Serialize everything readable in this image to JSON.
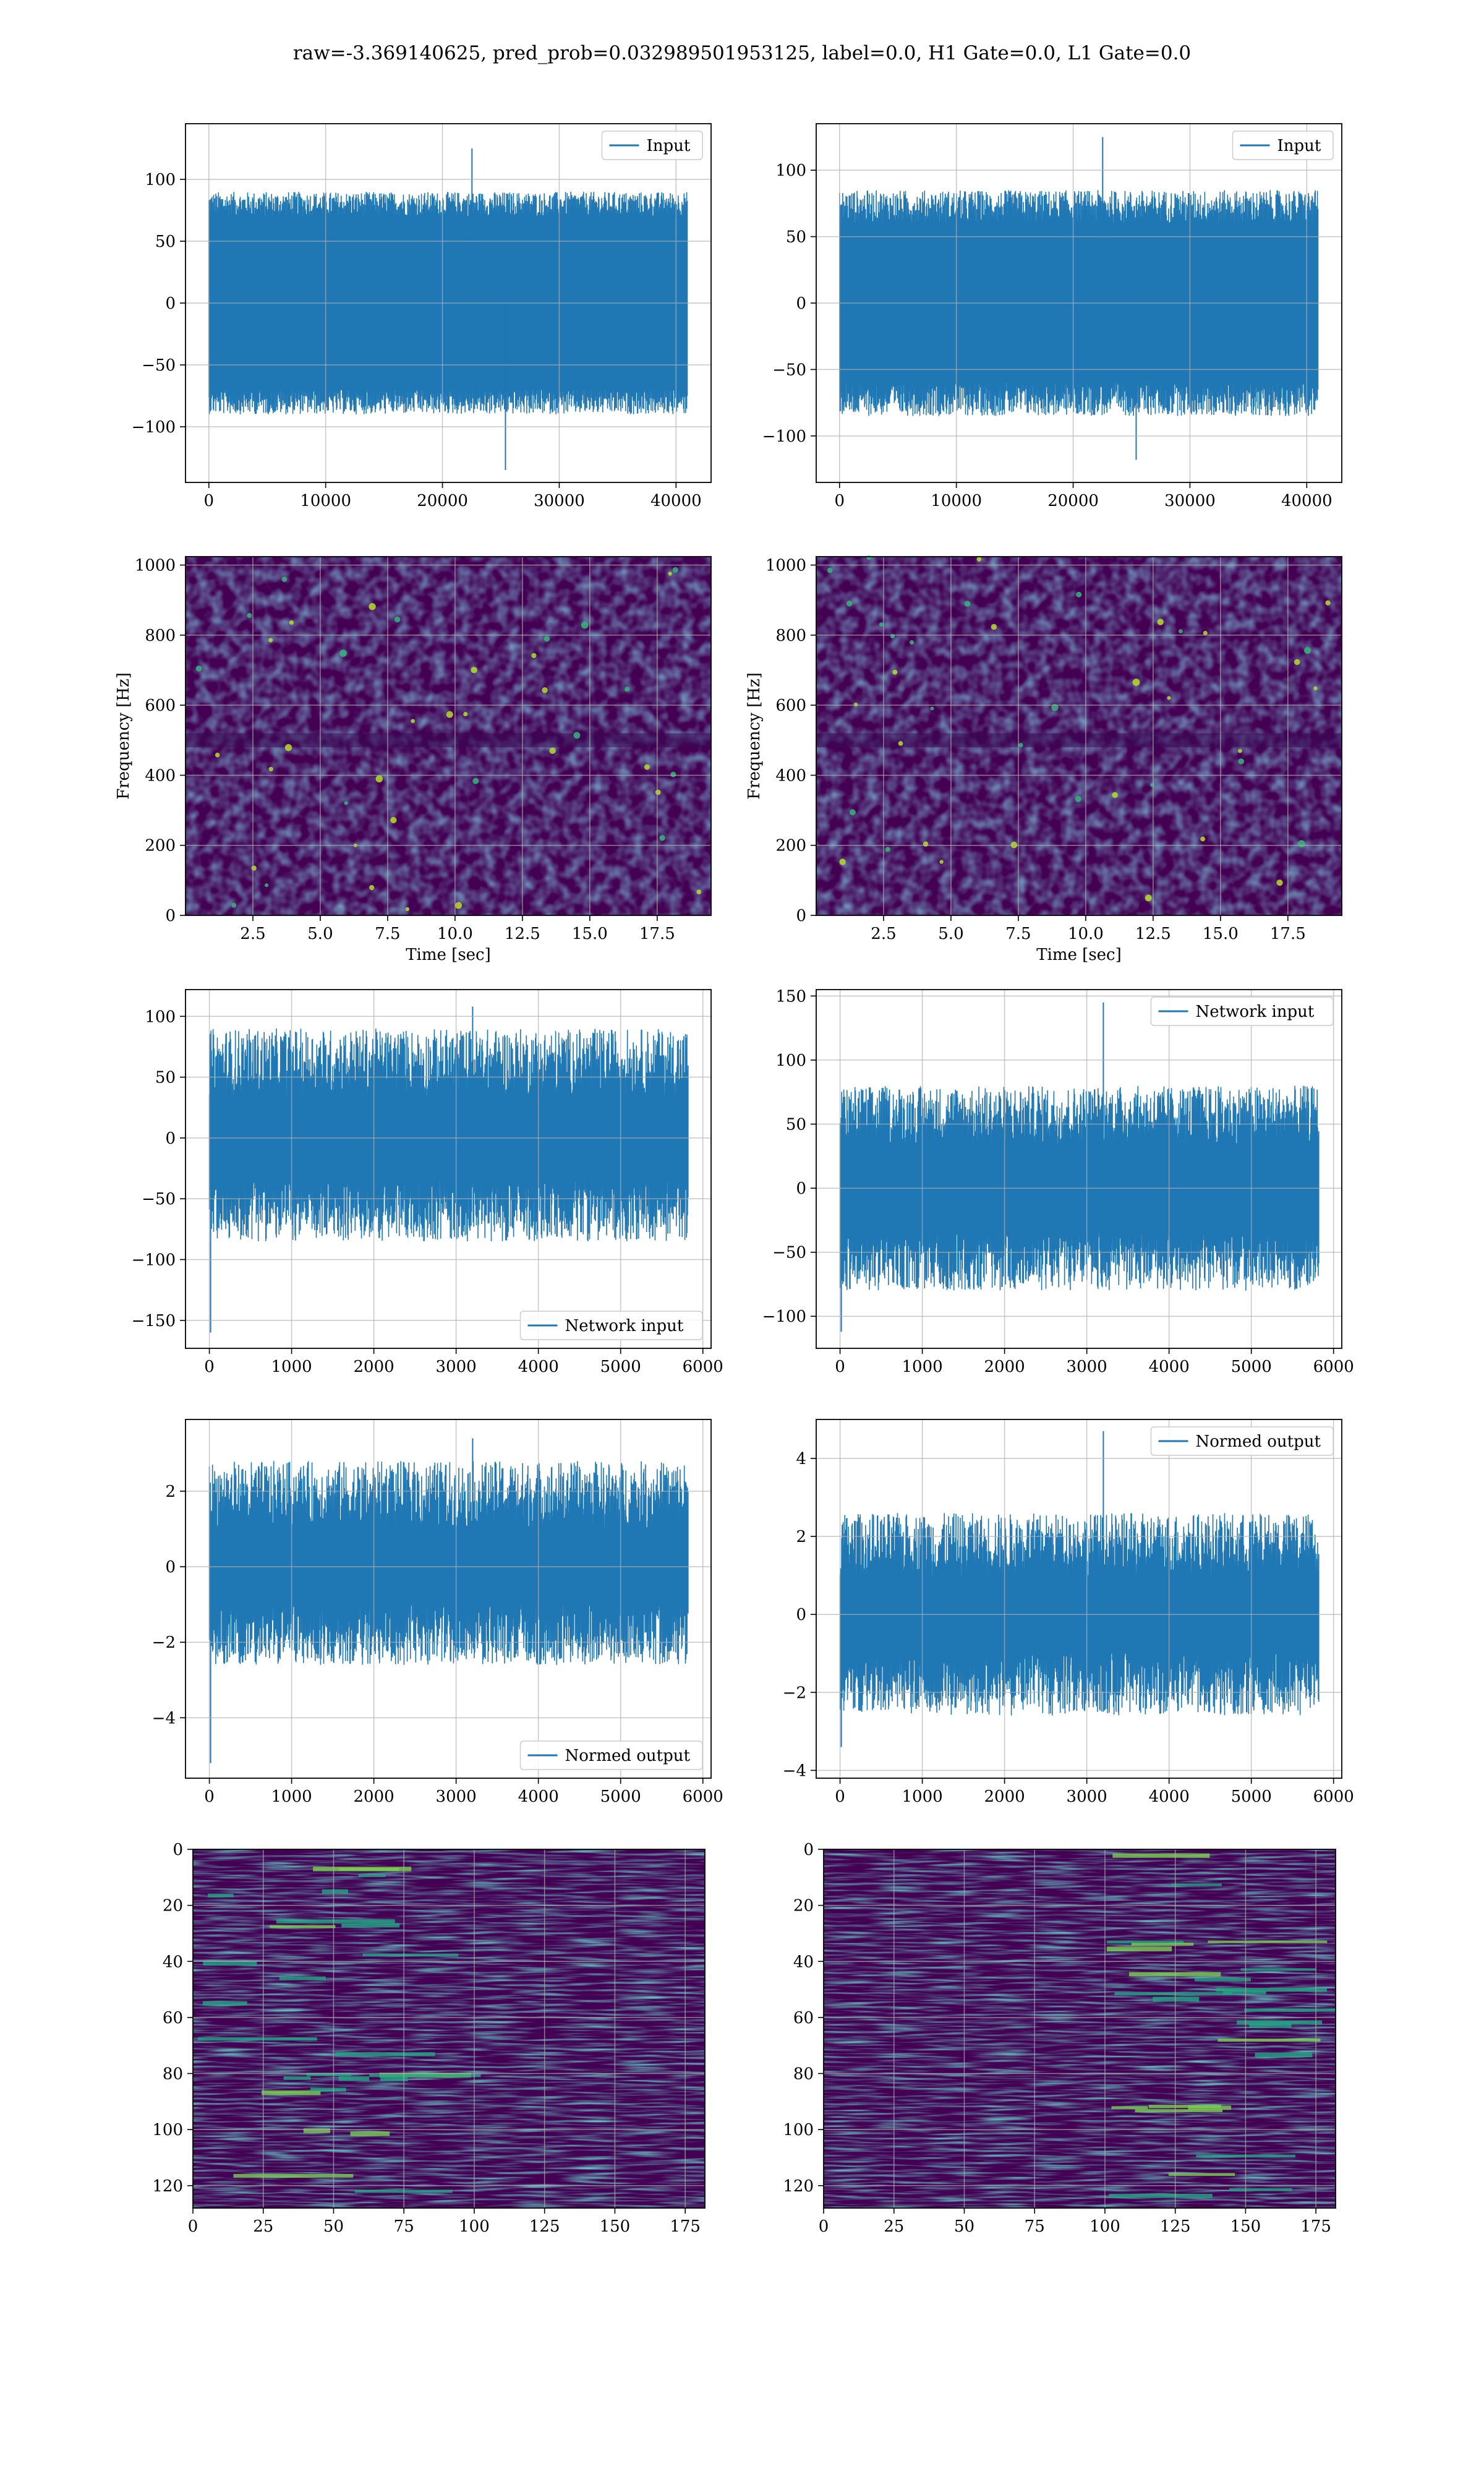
{
  "suptitle": "raw=-3.369140625, pred_prob=0.032989501953125, label=0.0, H1 Gate=0.0, L1 Gate=0.0",
  "colors": {
    "line": "#1f77b4",
    "grid": "#b0b0b0",
    "frame": "#000000",
    "image_base": "#440154"
  },
  "chart_data": [
    {
      "panel": "row1-left",
      "type": "line",
      "xlim": [
        -2000,
        43000
      ],
      "ylim": [
        -145,
        145
      ],
      "xticks": [
        0,
        10000,
        20000,
        30000,
        40000
      ],
      "xtick_labels": [
        "0",
        "10000",
        "20000",
        "30000",
        "40000"
      ],
      "yticks": [
        -100,
        -50,
        0,
        50,
        100
      ],
      "ytick_labels": [
        "−100",
        "−50",
        "0",
        "50",
        "100"
      ],
      "series": [
        {
          "name": "Input",
          "x_range": [
            0,
            40960
          ],
          "envelope": [
            -90,
            90
          ],
          "core": [
            -70,
            70
          ],
          "peak_max": 125,
          "peak_min": -135
        }
      ],
      "legend": "upper right",
      "grid": true,
      "xlabel": "",
      "ylabel": ""
    },
    {
      "panel": "row1-right",
      "type": "line",
      "xlim": [
        -2000,
        43000
      ],
      "ylim": [
        -135,
        135
      ],
      "xticks": [
        0,
        10000,
        20000,
        30000,
        40000
      ],
      "xtick_labels": [
        "0",
        "10000",
        "20000",
        "30000",
        "40000"
      ],
      "yticks": [
        -100,
        -50,
        0,
        50,
        100
      ],
      "ytick_labels": [
        "−100",
        "−50",
        "0",
        "50",
        "100"
      ],
      "series": [
        {
          "name": "Input",
          "x_range": [
            0,
            40960
          ],
          "envelope": [
            -85,
            85
          ],
          "core": [
            -60,
            60
          ],
          "peak_max": 125,
          "peak_min": -118
        }
      ],
      "legend": "upper right",
      "grid": true,
      "xlabel": "",
      "ylabel": ""
    },
    {
      "panel": "row2-left",
      "type": "heatmap",
      "xlim": [
        0,
        19.5
      ],
      "ylim": [
        0,
        1024
      ],
      "xticks": [
        2.5,
        5,
        7.5,
        10,
        12.5,
        15,
        17.5
      ],
      "xtick_labels": [
        "2.5",
        "5.0",
        "7.5",
        "10.0",
        "12.5",
        "15.0",
        "17.5"
      ],
      "yticks": [
        0,
        200,
        400,
        600,
        800,
        1000
      ],
      "ytick_labels": [
        "0",
        "200",
        "400",
        "600",
        "800",
        "1000"
      ],
      "xlabel": "Time [sec]",
      "ylabel": "Frequency [Hz]",
      "grid": true,
      "colormap": "viridis"
    },
    {
      "panel": "row2-right",
      "type": "heatmap",
      "xlim": [
        0,
        19.5
      ],
      "ylim": [
        0,
        1024
      ],
      "xticks": [
        2.5,
        5,
        7.5,
        10,
        12.5,
        15,
        17.5
      ],
      "xtick_labels": [
        "2.5",
        "5.0",
        "7.5",
        "10.0",
        "12.5",
        "15.0",
        "17.5"
      ],
      "yticks": [
        0,
        200,
        400,
        600,
        800,
        1000
      ],
      "ytick_labels": [
        "0",
        "200",
        "400",
        "600",
        "800",
        "1000"
      ],
      "xlabel": "Time [sec]",
      "ylabel": "Frequency [Hz]",
      "grid": true,
      "colormap": "viridis"
    },
    {
      "panel": "row3-left",
      "type": "line",
      "xlim": [
        -290,
        6100
      ],
      "ylim": [
        -173,
        122
      ],
      "xticks": [
        0,
        1000,
        2000,
        3000,
        4000,
        5000,
        6000
      ],
      "xtick_labels": [
        "0",
        "1000",
        "2000",
        "3000",
        "4000",
        "5000",
        "6000"
      ],
      "yticks": [
        -150,
        -100,
        -50,
        0,
        50,
        100
      ],
      "ytick_labels": [
        "−150",
        "−100",
        "−50",
        "0",
        "50",
        "100"
      ],
      "series": [
        {
          "name": "Network input",
          "x_range": [
            0,
            5820
          ],
          "envelope": [
            -85,
            90
          ],
          "core": [
            -35,
            35
          ],
          "peak_max": 108,
          "peak_min": -160
        }
      ],
      "legend": "lower right",
      "grid": true,
      "xlabel": "",
      "ylabel": ""
    },
    {
      "panel": "row3-right",
      "type": "line",
      "xlim": [
        -290,
        6100
      ],
      "ylim": [
        -125,
        155
      ],
      "xticks": [
        0,
        1000,
        2000,
        3000,
        4000,
        5000,
        6000
      ],
      "xtick_labels": [
        "0",
        "1000",
        "2000",
        "3000",
        "4000",
        "5000",
        "6000"
      ],
      "yticks": [
        -100,
        -50,
        0,
        50,
        100,
        150
      ],
      "ytick_labels": [
        "−100",
        "−50",
        "0",
        "50",
        "100",
        "150"
      ],
      "series": [
        {
          "name": "Network input",
          "x_range": [
            0,
            5820
          ],
          "envelope": [
            -80,
            80
          ],
          "core": [
            -35,
            35
          ],
          "peak_max": 145,
          "peak_min": -112
        }
      ],
      "legend": "upper right",
      "grid": true,
      "xlabel": "",
      "ylabel": ""
    },
    {
      "panel": "row4-left",
      "type": "line",
      "xlim": [
        -290,
        6100
      ],
      "ylim": [
        -5.6,
        3.9
      ],
      "xticks": [
        0,
        1000,
        2000,
        3000,
        4000,
        5000,
        6000
      ],
      "xtick_labels": [
        "0",
        "1000",
        "2000",
        "3000",
        "4000",
        "5000",
        "6000"
      ],
      "yticks": [
        -4,
        -2,
        0,
        2
      ],
      "ytick_labels": [
        "−4",
        "−2",
        "0",
        "2"
      ],
      "series": [
        {
          "name": "Normed output",
          "x_range": [
            0,
            5820
          ],
          "envelope": [
            -2.6,
            2.8
          ],
          "core": [
            -1.0,
            1.0
          ],
          "peak_max": 3.4,
          "peak_min": -5.2
        }
      ],
      "legend": "lower right",
      "grid": true,
      "xlabel": "",
      "ylabel": ""
    },
    {
      "panel": "row4-right",
      "type": "line",
      "xlim": [
        -290,
        6100
      ],
      "ylim": [
        -4.2,
        5.0
      ],
      "xticks": [
        0,
        1000,
        2000,
        3000,
        4000,
        5000,
        6000
      ],
      "xtick_labels": [
        "0",
        "1000",
        "2000",
        "3000",
        "4000",
        "5000",
        "6000"
      ],
      "yticks": [
        -4,
        -2,
        0,
        2,
        4
      ],
      "ytick_labels": [
        "−4",
        "−2",
        "0",
        "2",
        "4"
      ],
      "series": [
        {
          "name": "Normed output",
          "x_range": [
            0,
            5820
          ],
          "envelope": [
            -2.6,
            2.6
          ],
          "core": [
            -1.0,
            1.0
          ],
          "peak_max": 4.7,
          "peak_min": -3.4
        }
      ],
      "legend": "upper right",
      "grid": true,
      "xlabel": "",
      "ylabel": ""
    },
    {
      "panel": "row5-left",
      "type": "heatmap",
      "xlim": [
        0,
        182
      ],
      "ylim": [
        128,
        0
      ],
      "xticks": [
        0,
        25,
        50,
        75,
        100,
        125,
        150,
        175
      ],
      "xtick_labels": [
        "0",
        "25",
        "50",
        "75",
        "100",
        "125",
        "150",
        "175"
      ],
      "yticks": [
        0,
        20,
        40,
        60,
        80,
        100,
        120
      ],
      "ytick_labels": [
        "0",
        "20",
        "40",
        "60",
        "80",
        "100",
        "120"
      ],
      "xlabel": "",
      "ylabel": "",
      "grid": true,
      "colormap": "viridis"
    },
    {
      "panel": "row5-right",
      "type": "heatmap",
      "xlim": [
        0,
        182
      ],
      "ylim": [
        128,
        0
      ],
      "xticks": [
        0,
        25,
        50,
        75,
        100,
        125,
        150,
        175
      ],
      "xtick_labels": [
        "0",
        "25",
        "50",
        "75",
        "100",
        "125",
        "150",
        "175"
      ],
      "yticks": [
        0,
        20,
        40,
        60,
        80,
        100,
        120
      ],
      "ytick_labels": [
        "0",
        "20",
        "40",
        "60",
        "80",
        "100",
        "120"
      ],
      "xlabel": "",
      "ylabel": "",
      "grid": true,
      "colormap": "viridis"
    }
  ]
}
